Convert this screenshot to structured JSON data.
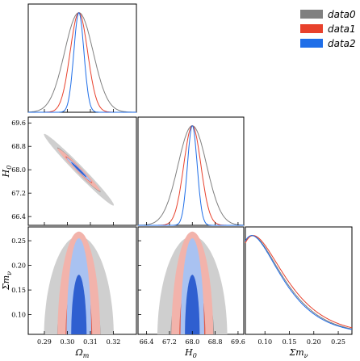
{
  "chart_data": {
    "type": "triangle",
    "legend": {
      "placement": "top-right",
      "entries": [
        {
          "label": "data0",
          "color": "#808080"
        },
        {
          "label": "data1",
          "color": "#e8412c"
        },
        {
          "label": "data2",
          "color": "#1f6ee8"
        }
      ]
    },
    "parameters": [
      {
        "name": "Ωm",
        "label": "Ω_m",
        "range": [
          0.283,
          0.33
        ],
        "ticks": [
          "0.29",
          "0.30",
          "0.31",
          "0.32"
        ],
        "tick_values": [
          0.29,
          0.3,
          0.31,
          0.32
        ]
      },
      {
        "name": "H0",
        "label": "H_0",
        "range": [
          66.1,
          69.8
        ],
        "ticks": [
          "66.4",
          "67.2",
          "68.0",
          "68.8",
          "69.6"
        ],
        "tick_values": [
          66.4,
          67.2,
          68.0,
          68.8,
          69.6
        ]
      },
      {
        "name": "Σmν",
        "label": "Σm_ν",
        "range": [
          0.06,
          0.278
        ],
        "ticks": [
          "0.10",
          "0.15",
          "0.20",
          "0.25"
        ],
        "tick_values": [
          0.1,
          0.15,
          0.2,
          0.25
        ]
      }
    ],
    "series": [
      {
        "name": "data0",
        "color": "#808080",
        "Om": {
          "mean": 0.305,
          "sigma": 0.0062
        },
        "H0": {
          "mean": 68.0,
          "sigma": 0.5
        },
        "Smnu_peak": 0.074,
        "Om_H0_corr": -0.985
      },
      {
        "name": "data1",
        "color": "#e8412c",
        "Om": {
          "mean": 0.305,
          "sigma": 0.0038
        },
        "H0": {
          "mean": 68.0,
          "sigma": 0.3
        },
        "Smnu_peak": 0.076,
        "Om_H0_corr": -0.985
      },
      {
        "name": "data2",
        "color": "#1f6ee8",
        "Om": {
          "mean": 0.305,
          "sigma": 0.0022
        },
        "H0": {
          "mean": 68.0,
          "sigma": 0.17
        },
        "Smnu_peak": 0.073,
        "Om_H0_corr": -0.985
      }
    ]
  }
}
